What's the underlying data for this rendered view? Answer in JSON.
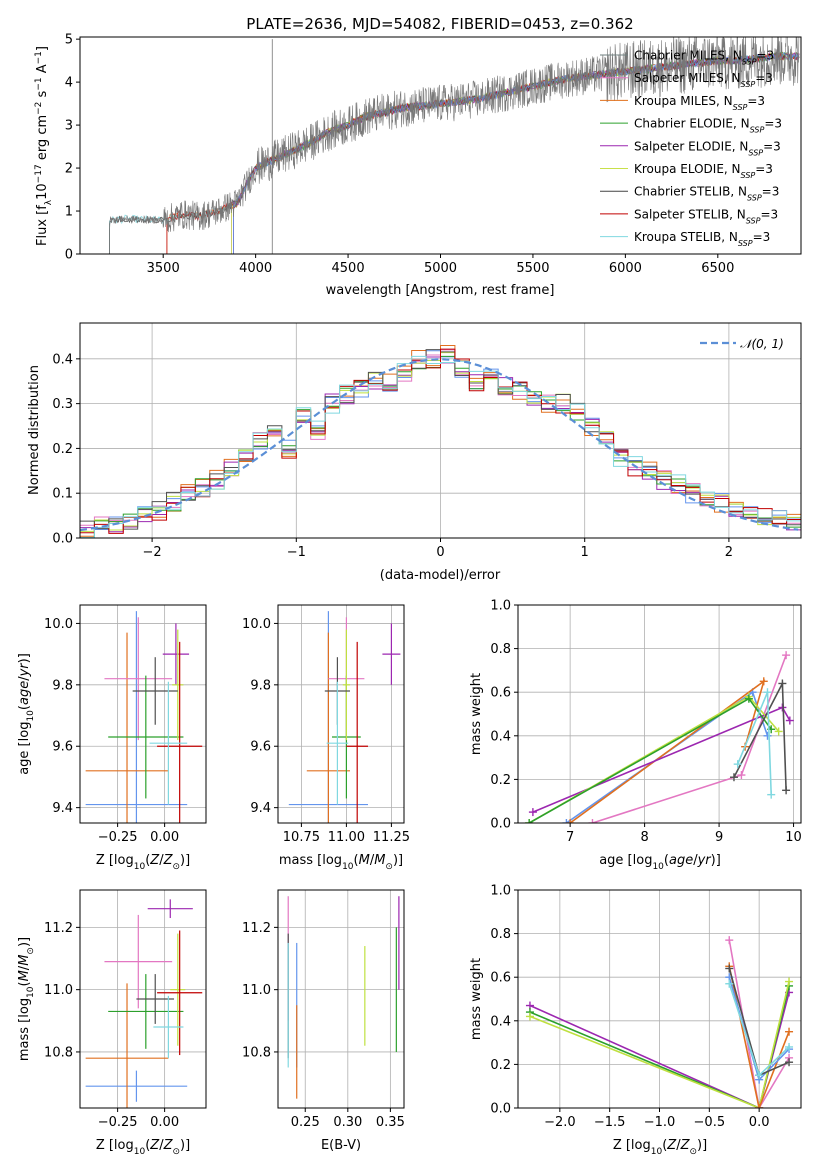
{
  "figure": {
    "title": "PLATE=2636, MJD=54082, FIBERID=0453, z=0.362"
  },
  "colors": {
    "chabrier_miles": "#6f7f7f",
    "salpeter_miles": "#e377c2",
    "kroupa_miles": "#e0701c",
    "chabrier_elodie": "#2ca02c",
    "salpeter_elodie": "#9c27b0",
    "kroupa_elodie": "#c8e04a",
    "chabrier_stelib": "#444444",
    "salpeter_stelib": "#c00000",
    "kroupa_stelib": "#80d8e0",
    "grid": "#b0b0b0",
    "gauss": "#5b8fd6",
    "blue": "#6495ed",
    "orange": "#e07020",
    "pink": "#e377c2",
    "purple": "#9c27b0",
    "green": "#2ca02c",
    "lime": "#bfe040",
    "darkgray": "#505050",
    "red": "#c00000",
    "cyan": "#80d8e0"
  },
  "chart_data": [
    {
      "id": "spectrum",
      "type": "line",
      "title": "PLATE=2636, MJD=54082, FIBERID=0453, z=0.362",
      "xlabel": "wavelength [Angstrom, rest frame]",
      "ylabel": "Flux [f_λ 10^-17 erg cm^-2 s^-1 A^-1]",
      "xlim": [
        3050,
        6950
      ],
      "ylim": [
        0,
        5.05
      ],
      "xticks": [
        "3500",
        "4000",
        "4500",
        "5000",
        "5500",
        "6000",
        "6500"
      ],
      "yticks": [
        "0",
        "1",
        "2",
        "3",
        "4",
        "5"
      ],
      "grid": false,
      "legend_position": "right",
      "legend": [
        "Chabrier MILES, N_SSP=3",
        "Salpeter MILES, N_SSP=3",
        "Kroupa MILES, N_SSP=3",
        "Chabrier ELODIE, N_SSP=3",
        "Salpeter ELODIE, N_SSP=3",
        "Kroupa ELODIE, N_SSP=3",
        "Chabrier STELIB, N_SSP=3",
        "Salpeter STELIB, N_SSP=3",
        "Kroupa STELIB, N_SSP=3"
      ],
      "continuum": {
        "x": [
          3210,
          3300,
          3400,
          3500,
          3600,
          3700,
          3800,
          3900,
          4000,
          4100,
          4200,
          4300,
          4400,
          4500,
          4600,
          4700,
          4800,
          4900,
          5000,
          5100,
          5200,
          5300,
          5400,
          5500,
          5600,
          5700,
          5800,
          5900,
          6000,
          6100,
          6200,
          6300,
          6400,
          6500,
          6600,
          6700,
          6800,
          6900
        ],
        "y": [
          0.78,
          0.82,
          0.8,
          0.78,
          0.92,
          0.88,
          1.0,
          1.2,
          2.0,
          2.2,
          2.4,
          2.6,
          2.85,
          3.0,
          3.2,
          3.3,
          3.4,
          3.45,
          3.5,
          3.55,
          3.6,
          3.7,
          3.8,
          3.9,
          4.0,
          4.1,
          4.15,
          4.2,
          4.25,
          4.3,
          4.35,
          4.4,
          4.45,
          4.5,
          4.5,
          4.55,
          4.6,
          4.6
        ]
      }
    },
    {
      "id": "residuals",
      "type": "line",
      "xlabel": "(data-model)/error",
      "ylabel": "Normed distribution",
      "xlim": [
        -2.5,
        2.5
      ],
      "ylim": [
        0,
        0.48
      ],
      "xticks": [
        "−2",
        "−1",
        "0",
        "1",
        "2"
      ],
      "yticks": [
        "0.0",
        "0.1",
        "0.2",
        "0.3",
        "0.4"
      ],
      "grid": true,
      "legend_position": "top-right",
      "legend": [
        "𝒩(0, 1)"
      ],
      "bin_centers": [
        -2.45,
        -2.35,
        -2.25,
        -2.15,
        -2.05,
        -1.95,
        -1.85,
        -1.75,
        -1.65,
        -1.55,
        -1.45,
        -1.35,
        -1.25,
        -1.15,
        -1.05,
        -0.95,
        -0.85,
        -0.75,
        -0.65,
        -0.55,
        -0.45,
        -0.35,
        -0.25,
        -0.15,
        -0.05,
        0.05,
        0.15,
        0.25,
        0.35,
        0.45,
        0.55,
        0.65,
        0.75,
        0.85,
        0.95,
        1.05,
        1.15,
        1.25,
        1.35,
        1.45,
        1.55,
        1.65,
        1.75,
        1.85,
        1.95,
        2.05,
        2.15,
        2.25,
        2.35,
        2.45
      ],
      "hist_mean": [
        0.02,
        0.025,
        0.03,
        0.04,
        0.05,
        0.06,
        0.08,
        0.1,
        0.11,
        0.13,
        0.16,
        0.19,
        0.22,
        0.25,
        0.2,
        0.27,
        0.24,
        0.3,
        0.32,
        0.33,
        0.35,
        0.35,
        0.37,
        0.4,
        0.4,
        0.41,
        0.38,
        0.35,
        0.36,
        0.34,
        0.33,
        0.31,
        0.3,
        0.3,
        0.28,
        0.25,
        0.22,
        0.18,
        0.16,
        0.15,
        0.13,
        0.12,
        0.1,
        0.09,
        0.08,
        0.065,
        0.05,
        0.05,
        0.045,
        0.04
      ]
    },
    {
      "id": "age-Z",
      "type": "scatter",
      "xlabel": "Z [log10(Z/Z⊙)]",
      "ylabel": "age [log10(age/yr)]",
      "xlim": [
        -0.45,
        0.22
      ],
      "ylim": [
        9.35,
        10.06
      ],
      "xticks": [
        "−0.25",
        "0.00"
      ],
      "yticks": [
        "9.4",
        "9.6",
        "9.8",
        "10.0"
      ],
      "grid": true,
      "points": [
        {
          "color": "blue",
          "x": -0.15,
          "y": 9.41,
          "xerr": 0.27,
          "yerr": 0.63
        },
        {
          "color": "orange",
          "x": -0.2,
          "y": 9.52,
          "xerr": 0.22,
          "yerr": 0.45
        },
        {
          "color": "pink",
          "x": -0.14,
          "y": 9.82,
          "xerr": 0.18,
          "yerr": 0.2
        },
        {
          "color": "purple",
          "x": 0.06,
          "y": 9.9,
          "xerr": 0.07,
          "yerr": 0.1
        },
        {
          "color": "green",
          "x": -0.1,
          "y": 9.63,
          "xerr": 0.2,
          "yerr": 0.2
        },
        {
          "color": "lime",
          "x": 0.07,
          "y": 9.8,
          "xerr": 0.03,
          "yerr": 0.18
        },
        {
          "color": "darkgray",
          "x": -0.05,
          "y": 9.78,
          "xerr": 0.12,
          "yerr": 0.11
        },
        {
          "color": "red",
          "x": 0.08,
          "y": 9.6,
          "xerr": 0.12,
          "yerr": 0.34
        },
        {
          "color": "cyan",
          "x": 0.02,
          "y": 9.61,
          "xerr": 0.1,
          "yerr": 0.2
        }
      ]
    },
    {
      "id": "age-mass",
      "type": "scatter",
      "xlabel": "mass [log10(M/M⊙)]",
      "ylabel": "",
      "xlim": [
        10.62,
        11.32
      ],
      "ylim": [
        9.35,
        10.06
      ],
      "xticks": [
        "10.75",
        "11.00",
        "11.25"
      ],
      "yticks": [
        "9.4",
        "9.6",
        "9.8",
        "10.0"
      ],
      "grid": true,
      "points": [
        {
          "color": "blue",
          "x": 10.9,
          "y": 9.41,
          "xerr": 0.22,
          "yerr": 0.63
        },
        {
          "color": "orange",
          "x": 10.9,
          "y": 9.52,
          "xerr": 0.12,
          "yerr": 0.45
        },
        {
          "color": "pink",
          "x": 11.0,
          "y": 9.82,
          "xerr": 0.1,
          "yerr": 0.2
        },
        {
          "color": "purple",
          "x": 11.25,
          "y": 9.9,
          "xerr": 0.05,
          "yerr": 0.1
        },
        {
          "color": "green",
          "x": 11.0,
          "y": 9.63,
          "xerr": 0.08,
          "yerr": 0.2
        },
        {
          "color": "lime",
          "x": 11.0,
          "y": 9.8,
          "xerr": 0.02,
          "yerr": 0.18
        },
        {
          "color": "darkgray",
          "x": 10.95,
          "y": 9.78,
          "xerr": 0.07,
          "yerr": 0.11
        },
        {
          "color": "red",
          "x": 11.06,
          "y": 9.6,
          "xerr": 0.06,
          "yerr": 0.34
        },
        {
          "color": "cyan",
          "x": 10.95,
          "y": 9.61,
          "xerr": 0.06,
          "yerr": 0.2
        }
      ]
    },
    {
      "id": "weight-age",
      "type": "line",
      "xlabel": "age [log10(age/yr)]",
      "ylabel": "mass weight",
      "xlim": [
        6.3,
        10.1
      ],
      "ylim": [
        0,
        1.0
      ],
      "xticks": [
        "7",
        "8",
        "9",
        "10"
      ],
      "yticks": [
        "0.0",
        "0.2",
        "0.4",
        "0.6",
        "0.8",
        "1.0"
      ],
      "grid": true,
      "series": [
        {
          "color": "blue",
          "x": [
            6.95,
            9.45,
            9.65
          ],
          "y": [
            0.0,
            0.6,
            0.4
          ]
        },
        {
          "color": "orange",
          "x": [
            7.0,
            9.6,
            9.35
          ],
          "y": [
            0.0,
            0.65,
            0.35
          ]
        },
        {
          "color": "pink",
          "x": [
            7.3,
            9.3,
            9.9
          ],
          "y": [
            0.0,
            0.22,
            0.77
          ]
        },
        {
          "color": "purple",
          "x": [
            6.5,
            9.85,
            9.95
          ],
          "y": [
            0.05,
            0.53,
            0.47
          ]
        },
        {
          "color": "lime",
          "x": [
            6.45,
            9.4,
            9.8
          ],
          "y": [
            0.0,
            0.58,
            0.42
          ]
        },
        {
          "color": "green",
          "x": [
            6.45,
            9.4,
            9.7
          ],
          "y": [
            0.0,
            0.57,
            0.43
          ]
        },
        {
          "color": "darkgray",
          "x": [
            9.2,
            9.85,
            9.9
          ],
          "y": [
            0.21,
            0.64,
            0.15
          ]
        },
        {
          "color": "cyan",
          "x": [
            9.25,
            9.65,
            9.7
          ],
          "y": [
            0.27,
            0.6,
            0.13
          ]
        }
      ]
    },
    {
      "id": "mass-Z",
      "type": "scatter",
      "xlabel": "Z [log10(Z/Z⊙)]",
      "ylabel": "mass [log10(M/M⊙)]",
      "xlim": [
        -0.45,
        0.22
      ],
      "ylim": [
        10.62,
        11.32
      ],
      "xticks": [
        "−0.25",
        "0.00"
      ],
      "yticks": [
        "10.8",
        "11.0",
        "11.2"
      ],
      "grid": true,
      "points": [
        {
          "color": "blue",
          "x": -0.15,
          "y": 10.69,
          "xerr": 0.27,
          "yerr": 0.05
        },
        {
          "color": "orange",
          "x": -0.2,
          "y": 10.78,
          "xerr": 0.22,
          "yerr": 0.24
        },
        {
          "color": "pink",
          "x": -0.14,
          "y": 11.09,
          "xerr": 0.18,
          "yerr": 0.15
        },
        {
          "color": "purple",
          "x": 0.03,
          "y": 11.26,
          "xerr": 0.12,
          "yerr": 0.03
        },
        {
          "color": "green",
          "x": -0.1,
          "y": 10.93,
          "xerr": 0.2,
          "yerr": 0.12
        },
        {
          "color": "lime",
          "x": 0.07,
          "y": 11.0,
          "xerr": 0.04,
          "yerr": 0.18
        },
        {
          "color": "darkgray",
          "x": -0.05,
          "y": 10.97,
          "xerr": 0.1,
          "yerr": 0.08
        },
        {
          "color": "red",
          "x": 0.08,
          "y": 10.99,
          "xerr": 0.12,
          "yerr": 0.2
        },
        {
          "color": "cyan",
          "x": 0.02,
          "y": 10.88,
          "xerr": 0.08,
          "yerr": 0.1
        }
      ]
    },
    {
      "id": "mass-ebv",
      "type": "scatter",
      "xlabel": "E(B-V)",
      "ylabel": "",
      "xlim": [
        0.218,
        0.366
      ],
      "ylim": [
        10.62,
        11.32
      ],
      "xticks": [
        "0.25",
        "0.30",
        "0.35"
      ],
      "yticks": [
        "10.8",
        "11.0",
        "11.2"
      ],
      "grid": true,
      "points": [
        {
          "color": "pink",
          "x": 0.23,
          "y": 11.1,
          "xerr": 0.0,
          "yerr": 0.2
        },
        {
          "color": "darkgray",
          "x": 0.23,
          "y": 10.98,
          "xerr": 0.0,
          "yerr": 0.2
        },
        {
          "color": "cyan",
          "x": 0.23,
          "y": 10.95,
          "xerr": 0.0,
          "yerr": 0.2
        },
        {
          "color": "blue",
          "x": 0.24,
          "y": 10.95,
          "xerr": 0.0,
          "yerr": 0.2
        },
        {
          "color": "orange",
          "x": 0.24,
          "y": 10.8,
          "xerr": 0.0,
          "yerr": 0.15
        },
        {
          "color": "lime",
          "x": 0.32,
          "y": 10.98,
          "xerr": 0.0,
          "yerr": 0.16
        },
        {
          "color": "green",
          "x": 0.357,
          "y": 11.0,
          "xerr": 0.0,
          "yerr": 0.2
        },
        {
          "color": "purple",
          "x": 0.36,
          "y": 11.15,
          "xerr": 0.0,
          "yerr": 0.15
        }
      ]
    },
    {
      "id": "weight-Z",
      "type": "line",
      "xlabel": "Z [log10(Z/Z⊙)]",
      "ylabel": "mass weight",
      "xlim": [
        -2.42,
        0.42
      ],
      "ylim": [
        0,
        1.0
      ],
      "xticks": [
        "−2.0",
        "−1.5",
        "−1.0",
        "−0.5",
        "0.0"
      ],
      "yticks": [
        "0.0",
        "0.2",
        "0.4",
        "0.6",
        "0.8",
        "1.0"
      ],
      "grid": true,
      "series": [
        {
          "color": "purple",
          "x": [
            -2.3,
            0.0,
            0.3
          ],
          "y": [
            0.47,
            0.0,
            0.53
          ]
        },
        {
          "color": "green",
          "x": [
            -2.3,
            0.0,
            0.3
          ],
          "y": [
            0.44,
            0.0,
            0.56
          ]
        },
        {
          "color": "lime",
          "x": [
            -2.3,
            0.0,
            0.3
          ],
          "y": [
            0.42,
            0.0,
            0.58
          ]
        },
        {
          "color": "pink",
          "x": [
            -0.3,
            0.0,
            0.3
          ],
          "y": [
            0.77,
            0.0,
            0.23
          ]
        },
        {
          "color": "orange",
          "x": [
            -0.3,
            0.0,
            0.3
          ],
          "y": [
            0.65,
            0.0,
            0.35
          ]
        },
        {
          "color": "blue",
          "x": [
            -0.3,
            0.0,
            0.3
          ],
          "y": [
            0.6,
            0.13,
            0.27
          ]
        },
        {
          "color": "darkgray",
          "x": [
            -0.3,
            0.0,
            0.3
          ],
          "y": [
            0.64,
            0.15,
            0.21
          ]
        },
        {
          "color": "cyan",
          "x": [
            -0.3,
            0.0,
            0.3
          ],
          "y": [
            0.57,
            0.15,
            0.28
          ]
        }
      ]
    }
  ]
}
